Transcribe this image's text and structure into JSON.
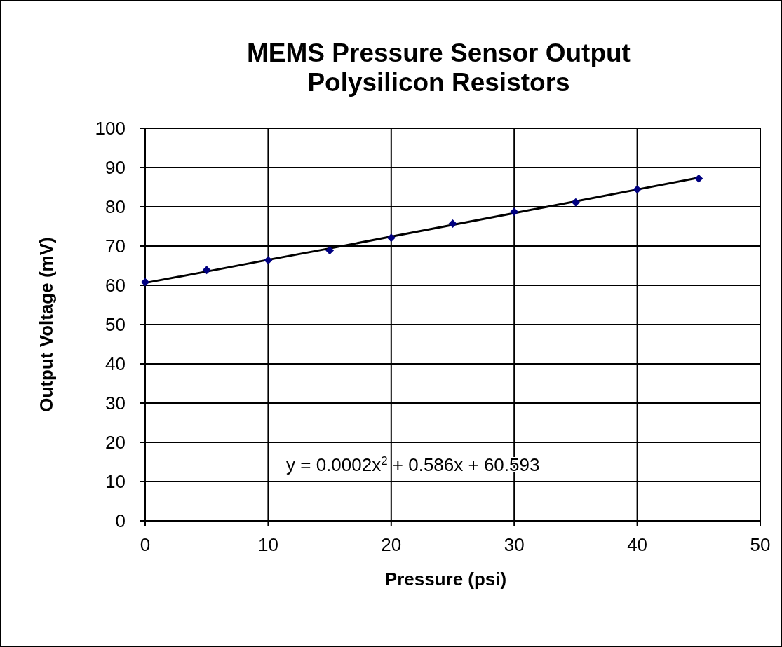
{
  "chart_data": {
    "type": "scatter",
    "title": "MEMS Pressure Sensor Output\nPolysilicon Resistors",
    "xlabel": "Pressure (psi)",
    "ylabel": "Output Voltage (mV)",
    "xlim": [
      0,
      50
    ],
    "xticks": [
      0,
      10,
      20,
      30,
      40,
      50
    ],
    "ylim": [
      0,
      100
    ],
    "yticks": [
      0,
      10,
      20,
      30,
      40,
      50,
      60,
      70,
      80,
      90,
      100
    ],
    "grid": true,
    "marker": "diamond",
    "annotations": [
      "y = 0.0002x$^{2}$ + 0.586x + 60.593"
    ],
    "series": [
      {
        "color": "#000080",
        "x": [
          0,
          5,
          10,
          15,
          20,
          25,
          30,
          35,
          40,
          45
        ],
        "values": [
          60.8,
          63.9,
          66.4,
          68.9,
          72.1,
          75.7,
          78.7,
          81.1,
          84.4,
          87.2
        ]
      },
      {
        "type": "line",
        "color": "#000000",
        "line_style": "solid",
        "marker": "none",
        "x": [
          0,
          5,
          10,
          15,
          20,
          25,
          30,
          35,
          40,
          45
        ],
        "values": [
          60.6,
          63.5,
          66.5,
          69.4,
          72.4,
          75.4,
          78.4,
          81.4,
          84.4,
          87.4
        ]
      }
    ]
  }
}
